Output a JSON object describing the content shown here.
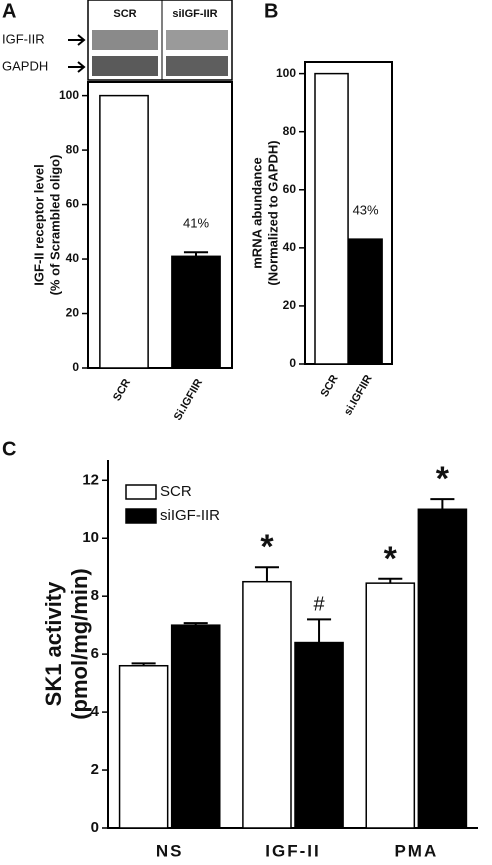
{
  "chart_data": [
    {
      "type": "bar",
      "panel": "A",
      "blot": {
        "columns": [
          "SCR",
          "siIGF-IIR"
        ],
        "rows": [
          "IGF-IIR",
          "GAPDH"
        ]
      },
      "ylabel": [
        "IGF-II receptor level",
        "(% of Scrambled oligo)"
      ],
      "categories": [
        "SCR",
        "Si.IGFIIR"
      ],
      "values": [
        100,
        41
      ],
      "errors": [
        null,
        1.5
      ],
      "value_labels": [
        null,
        "41%"
      ],
      "colors": [
        "#ffffff",
        "#000000"
      ],
      "ylim": [
        0,
        105
      ],
      "yticks": [
        0,
        20,
        40,
        60,
        80,
        100
      ]
    },
    {
      "type": "bar",
      "panel": "B",
      "ylabel": [
        "mRNA abundance",
        "(Normalized to GAPDH)"
      ],
      "categories": [
        "SCR",
        "si.IGFIIR"
      ],
      "values": [
        100,
        43
      ],
      "value_labels": [
        null,
        "43%"
      ],
      "colors": [
        "#ffffff",
        "#000000"
      ],
      "ylim": [
        0,
        104
      ],
      "yticks": [
        0,
        20,
        40,
        60,
        80,
        100
      ]
    },
    {
      "type": "grouped-bar",
      "panel": "C",
      "ylabel": [
        "SK1 activity",
        "(pmol/mg/min)"
      ],
      "categories": [
        "NS",
        "IGF-II",
        "PMA"
      ],
      "legend": "upper left",
      "series": [
        {
          "name": "SCR",
          "color": "#ffffff",
          "values": [
            5.6,
            8.5,
            8.45
          ],
          "errors": [
            0.08,
            0.5,
            0.15
          ],
          "markers": [
            null,
            "*",
            "*"
          ]
        },
        {
          "name": "siIGF-IIR",
          "color": "#000000",
          "values": [
            7.0,
            6.4,
            11.0
          ],
          "errors": [
            0.07,
            0.8,
            0.35
          ],
          "markers": [
            null,
            "#",
            "*"
          ]
        }
      ],
      "ylim": [
        0,
        12.7
      ],
      "yticks": [
        0,
        2,
        4,
        6,
        8,
        10,
        12
      ]
    }
  ]
}
